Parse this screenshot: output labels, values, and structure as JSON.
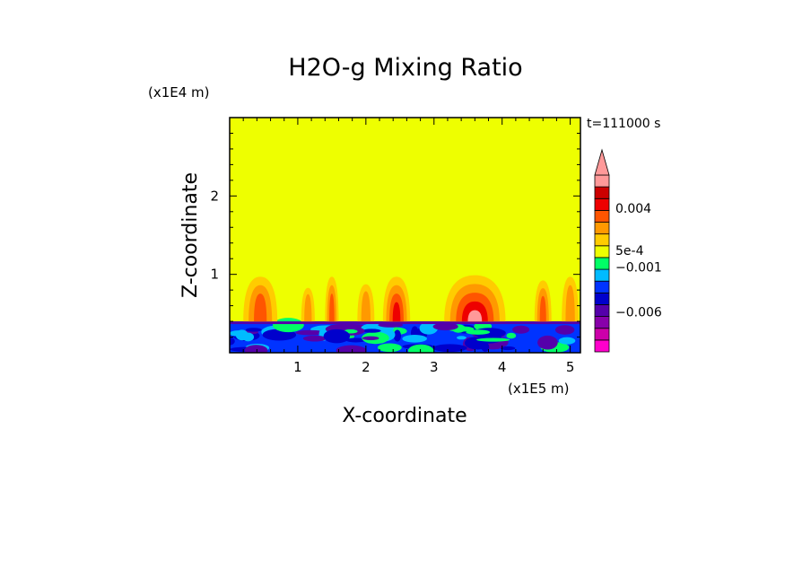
{
  "chart_data": {
    "type": "heatmap",
    "title": "H2O-g Mixing Ratio",
    "xlabel": "X-coordinate",
    "ylabel": "Z-coordinate",
    "x_scale_label": "(x1E5 m)",
    "y_scale_label": "(x1E4 m)",
    "time_label": "t=111000 s",
    "xlim": [
      0,
      5.15
    ],
    "ylim": [
      0,
      3.0
    ],
    "x_ticks": [
      1,
      2,
      3,
      4,
      5
    ],
    "y_ticks": [
      1,
      2
    ],
    "colorbar": {
      "labels": [
        {
          "text": "0.004",
          "value": 0.004
        },
        {
          "text": "5e-4",
          "value": 0.0005
        },
        {
          "text": "−0.001",
          "value": -0.001
        },
        {
          "text": "−0.006",
          "value": -0.006
        }
      ],
      "bands": [
        {
          "color": "#ff00cc"
        },
        {
          "color": "#cc00aa"
        },
        {
          "color": "#8800aa"
        },
        {
          "color": "#5500aa"
        },
        {
          "color": "#0000cc"
        },
        {
          "color": "#0033ff"
        },
        {
          "color": "#00bbff"
        },
        {
          "color": "#00ff66"
        },
        {
          "color": "#eeff00"
        },
        {
          "color": "#ffcc00"
        },
        {
          "color": "#ff9900"
        },
        {
          "color": "#ff5500"
        },
        {
          "color": "#ee0000"
        },
        {
          "color": "#cc0000"
        },
        {
          "color": "#ff9999"
        }
      ],
      "arrow_color": "#ff9999"
    },
    "background_color": "#eeff00",
    "surface_layer": {
      "z_top": 0.4,
      "colors": [
        "#0033ff",
        "#0000cc",
        "#5500aa",
        "#00bbff",
        "#00ff66"
      ]
    },
    "plumes": [
      {
        "x": 0.45,
        "z_base": 0.4,
        "z_top": 1.0,
        "width": 0.5,
        "intensity": 2
      },
      {
        "x": 1.15,
        "z_base": 0.4,
        "z_top": 0.85,
        "width": 0.2,
        "intensity": 1
      },
      {
        "x": 1.5,
        "z_base": 0.4,
        "z_top": 1.0,
        "width": 0.2,
        "intensity": 2
      },
      {
        "x": 2.0,
        "z_base": 0.4,
        "z_top": 0.9,
        "width": 0.25,
        "intensity": 1
      },
      {
        "x": 2.45,
        "z_base": 0.4,
        "z_top": 1.0,
        "width": 0.4,
        "intensity": 3
      },
      {
        "x": 3.6,
        "z_base": 0.4,
        "z_top": 1.02,
        "width": 0.9,
        "intensity": 4
      },
      {
        "x": 4.6,
        "z_base": 0.4,
        "z_top": 0.95,
        "width": 0.25,
        "intensity": 2
      },
      {
        "x": 5.0,
        "z_base": 0.4,
        "z_top": 1.0,
        "width": 0.25,
        "intensity": 1
      }
    ]
  }
}
